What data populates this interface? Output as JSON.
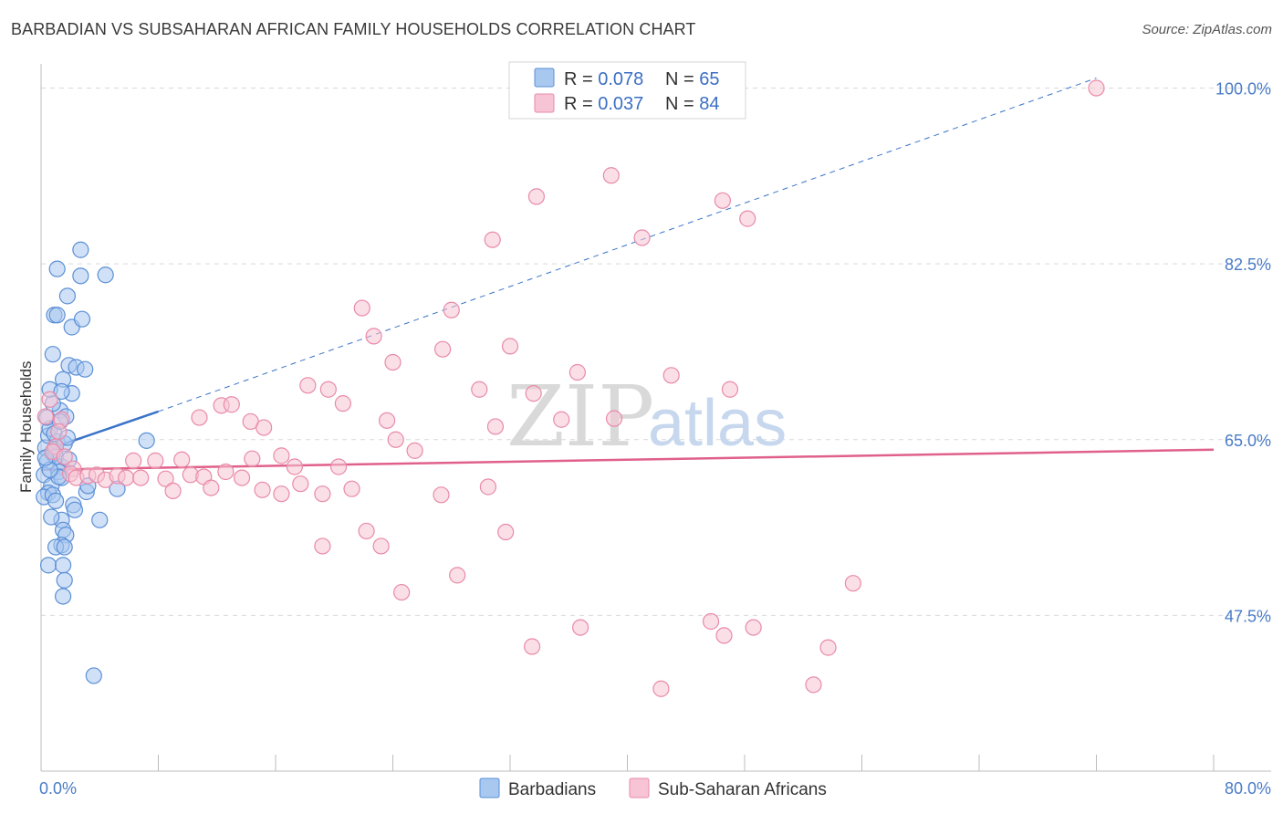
{
  "title": "BARBADIAN VS SUBSAHARAN AFRICAN FAMILY HOUSEHOLDS CORRELATION CHART",
  "source": "Source: ZipAtlas.com",
  "watermark": {
    "zip": "ZIP",
    "atlas": "atlas"
  },
  "colors": {
    "blue_fill": "#a9c8f0",
    "blue_stroke": "#5b8fd6",
    "blue_line": "#3a74c9",
    "pink_fill": "#f6c4d4",
    "pink_stroke": "#e98aa9",
    "pink_line": "#e0608a",
    "grid": "#d9d9d9",
    "axis_text": "#4a7cc7"
  },
  "legend": {
    "rows": [
      {
        "r_label": "R = ",
        "r_value": "0.078",
        "n_label": "N = ",
        "n_value": "65",
        "series": "blue"
      },
      {
        "r_label": "R = ",
        "r_value": "0.037",
        "n_label": "N = ",
        "n_value": "84",
        "series": "pink"
      }
    ]
  },
  "chart_data": {
    "type": "scatter",
    "title": "BARBADIAN VS SUBSAHARAN AFRICAN FAMILY HOUSEHOLDS CORRELATION CHART",
    "xlabel": "",
    "ylabel": "Family Households",
    "xlim": [
      0,
      80
    ],
    "ylim": [
      32,
      101.5
    ],
    "x_tick_labels": [
      "0.0%",
      "80.0%"
    ],
    "y_ticks": [
      47.5,
      65.0,
      82.5,
      100.0
    ],
    "y_tick_labels": [
      "47.5%",
      "65.0%",
      "82.5%",
      "100.0%"
    ],
    "grid": true,
    "legend_position": "top-center",
    "series": [
      {
        "name": "Barbadians",
        "color": "blue",
        "R": 0.078,
        "N": 65,
        "trend": {
          "x0": 0,
          "y0": 63.8,
          "x1": 8,
          "y1": 67.8,
          "dash_to_x": 72,
          "dash_to_y": 101
        },
        "points": [
          [
            0.3,
            64.2
          ],
          [
            0.5,
            65.4
          ],
          [
            0.8,
            63.6
          ],
          [
            0.4,
            62.8
          ],
          [
            1.1,
            64.8
          ],
          [
            0.6,
            66.1
          ],
          [
            0.9,
            64.0
          ],
          [
            1.4,
            62.3
          ],
          [
            0.2,
            61.5
          ],
          [
            0.7,
            60.4
          ],
          [
            1.2,
            61.8
          ],
          [
            0.5,
            59.7
          ],
          [
            1.6,
            64.6
          ],
          [
            0.9,
            65.6
          ],
          [
            1.8,
            65.2
          ],
          [
            1.0,
            63.3
          ],
          [
            0.4,
            67.2
          ],
          [
            1.3,
            67.9
          ],
          [
            0.8,
            68.6
          ],
          [
            1.7,
            67.3
          ],
          [
            0.6,
            70.0
          ],
          [
            1.5,
            71.0
          ],
          [
            2.1,
            69.6
          ],
          [
            1.4,
            69.8
          ],
          [
            1.9,
            72.4
          ],
          [
            2.4,
            72.2
          ],
          [
            3.0,
            72.0
          ],
          [
            0.8,
            73.5
          ],
          [
            2.1,
            76.2
          ],
          [
            2.8,
            77.0
          ],
          [
            0.9,
            77.4
          ],
          [
            1.1,
            77.4
          ],
          [
            1.8,
            79.3
          ],
          [
            2.7,
            81.3
          ],
          [
            1.1,
            82.0
          ],
          [
            4.4,
            81.4
          ],
          [
            2.7,
            83.9
          ],
          [
            0.2,
            59.3
          ],
          [
            0.8,
            59.5
          ],
          [
            1.4,
            57.0
          ],
          [
            2.2,
            58.5
          ],
          [
            3.1,
            59.8
          ],
          [
            3.2,
            60.4
          ],
          [
            4.0,
            57.0
          ],
          [
            1.5,
            56.0
          ],
          [
            1.7,
            55.5
          ],
          [
            1.4,
            54.5
          ],
          [
            1.0,
            54.3
          ],
          [
            1.6,
            54.3
          ],
          [
            0.5,
            52.5
          ],
          [
            1.5,
            52.5
          ],
          [
            1.6,
            51.0
          ],
          [
            1.5,
            49.4
          ],
          [
            3.6,
            41.5
          ],
          [
            1.4,
            61.2
          ],
          [
            5.2,
            60.1
          ],
          [
            7.2,
            64.9
          ],
          [
            1.2,
            61.3
          ],
          [
            0.6,
            62.0
          ],
          [
            1.9,
            63.0
          ],
          [
            0.3,
            63.2
          ],
          [
            2.3,
            58.0
          ],
          [
            1.0,
            58.9
          ],
          [
            0.7,
            57.3
          ],
          [
            1.3,
            66.8
          ]
        ]
      },
      {
        "name": "Sub-Saharan Africans",
        "color": "pink",
        "R": 0.037,
        "N": 84,
        "trend": {
          "x0": 0,
          "y0": 62.0,
          "x1": 80,
          "y1": 64.0
        },
        "points": [
          [
            0.6,
            69.0
          ],
          [
            0.3,
            67.3
          ],
          [
            1.4,
            67.0
          ],
          [
            1.2,
            65.8
          ],
          [
            1.0,
            64.3
          ],
          [
            0.8,
            63.8
          ],
          [
            1.6,
            63.3
          ],
          [
            2.2,
            62.1
          ],
          [
            2.0,
            61.6
          ],
          [
            2.4,
            61.2
          ],
          [
            3.2,
            61.4
          ],
          [
            3.8,
            61.5
          ],
          [
            4.4,
            61.0
          ],
          [
            5.2,
            61.4
          ],
          [
            5.8,
            61.2
          ],
          [
            6.3,
            62.9
          ],
          [
            6.8,
            61.2
          ],
          [
            7.8,
            62.9
          ],
          [
            8.5,
            61.1
          ],
          [
            9.6,
            63.0
          ],
          [
            10.2,
            61.5
          ],
          [
            11.1,
            61.3
          ],
          [
            11.6,
            60.2
          ],
          [
            12.6,
            61.8
          ],
          [
            13.7,
            61.2
          ],
          [
            14.4,
            63.1
          ],
          [
            15.1,
            60.0
          ],
          [
            16.4,
            59.6
          ],
          [
            17.3,
            62.3
          ],
          [
            17.7,
            60.6
          ],
          [
            19.2,
            59.6
          ],
          [
            20.3,
            62.3
          ],
          [
            21.2,
            60.1
          ],
          [
            22.2,
            55.9
          ],
          [
            23.2,
            54.4
          ],
          [
            23.6,
            66.9
          ],
          [
            24.2,
            65.0
          ],
          [
            25.5,
            63.9
          ],
          [
            27.3,
            59.5
          ],
          [
            30.5,
            60.3
          ],
          [
            31.7,
            55.8
          ],
          [
            9.0,
            59.9
          ],
          [
            10.8,
            67.2
          ],
          [
            12.3,
            68.4
          ],
          [
            13.0,
            68.5
          ],
          [
            14.3,
            66.8
          ],
          [
            15.2,
            66.2
          ],
          [
            16.4,
            63.4
          ],
          [
            18.2,
            70.4
          ],
          [
            19.6,
            70.0
          ],
          [
            20.6,
            68.6
          ],
          [
            24.0,
            72.7
          ],
          [
            27.4,
            74.0
          ],
          [
            28.0,
            77.9
          ],
          [
            29.9,
            70.0
          ],
          [
            31.0,
            66.3
          ],
          [
            33.6,
            69.6
          ],
          [
            35.5,
            67.0
          ],
          [
            32.0,
            74.3
          ],
          [
            36.6,
            71.7
          ],
          [
            39.1,
            67.1
          ],
          [
            30.8,
            84.9
          ],
          [
            33.8,
            89.2
          ],
          [
            41.0,
            85.1
          ],
          [
            43.0,
            71.4
          ],
          [
            47.0,
            70.0
          ],
          [
            46.5,
            88.8
          ],
          [
            48.2,
            87.0
          ],
          [
            38.9,
            91.3
          ],
          [
            22.7,
            75.3
          ],
          [
            21.9,
            78.1
          ],
          [
            19.2,
            54.4
          ],
          [
            24.6,
            49.8
          ],
          [
            28.4,
            51.5
          ],
          [
            33.5,
            44.4
          ],
          [
            36.8,
            46.3
          ],
          [
            48.6,
            46.3
          ],
          [
            45.7,
            46.9
          ],
          [
            46.6,
            45.5
          ],
          [
            53.7,
            44.3
          ],
          [
            42.3,
            40.2
          ],
          [
            52.7,
            40.6
          ],
          [
            55.4,
            50.7
          ],
          [
            72.0,
            100.0
          ]
        ]
      }
    ]
  },
  "bottom_legend": {
    "items": [
      {
        "label": "Barbadians",
        "series": "blue"
      },
      {
        "label": "Sub-Saharan Africans",
        "series": "pink"
      }
    ]
  }
}
